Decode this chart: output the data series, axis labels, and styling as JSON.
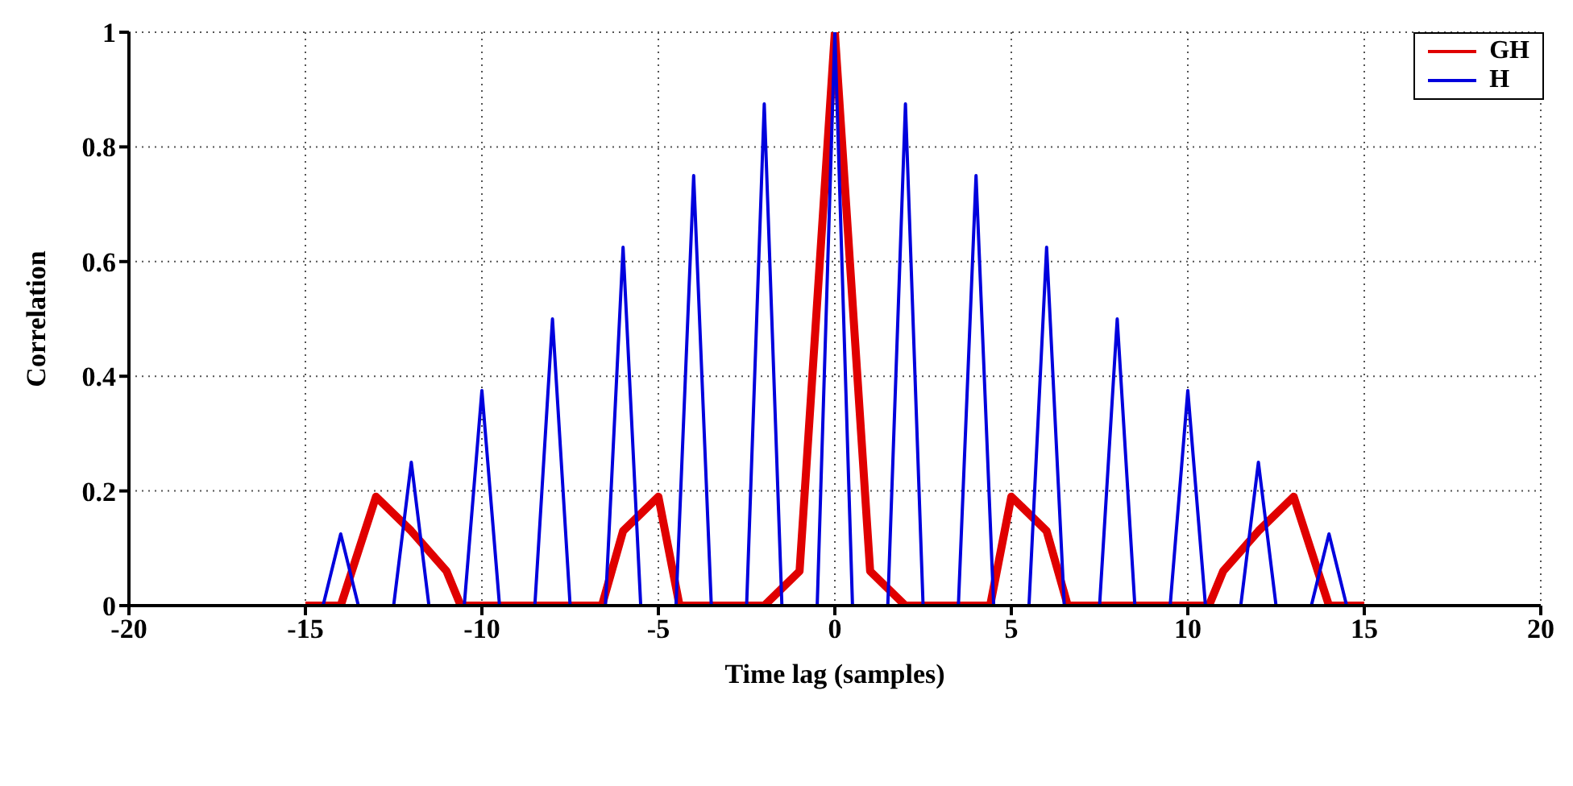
{
  "chart_data": {
    "type": "line",
    "xlabel": "Time lag (samples)",
    "ylabel": "Correlation",
    "xlim": [
      -20,
      20
    ],
    "xticks": [
      -20,
      -15,
      -10,
      -5,
      0,
      5,
      10,
      15,
      20
    ],
    "ylim": [
      0,
      1
    ],
    "yticks": [
      0,
      0.2,
      0.4,
      0.6,
      0.8,
      1
    ],
    "grid": true,
    "legend": "top right",
    "marker": "none",
    "line_style": "solid",
    "series": [
      {
        "name": "GH",
        "color": "#e00000",
        "x": [
          -15,
          -14,
          -13,
          -12,
          -11,
          -10.6,
          -6.6,
          -6,
          -5,
          -4.4,
          -2,
          -1,
          0,
          1,
          2,
          4.4,
          5,
          6,
          6.6,
          10.6,
          11,
          12,
          13,
          14,
          15
        ],
        "values": [
          0,
          0,
          0.19,
          0.13,
          0.06,
          0,
          0,
          0.13,
          0.19,
          0,
          0,
          0.06,
          1,
          0.06,
          0,
          0,
          0.19,
          0.13,
          0,
          0,
          0.06,
          0.13,
          0.19,
          0,
          0
        ]
      },
      {
        "name": "H",
        "color": "#0000dd",
        "x": [
          -15,
          -14.5,
          -14,
          -13.5,
          -13,
          -12.5,
          -12,
          -11.5,
          -11,
          -10.5,
          -10,
          -9.5,
          -9,
          -8.5,
          -8,
          -7.5,
          -7,
          -6.5,
          -6,
          -5.5,
          -5,
          -4.5,
          -4,
          -3.5,
          -3,
          -2.5,
          -2,
          -1.5,
          -1,
          -0.5,
          0,
          0.5,
          1,
          1.5,
          2,
          2.5,
          3,
          3.5,
          4,
          4.5,
          5,
          5.5,
          6,
          6.5,
          7,
          7.5,
          8,
          8.5,
          9,
          9.5,
          10,
          10.5,
          11,
          11.5,
          12,
          12.5,
          13,
          13.5,
          14,
          14.5,
          15
        ],
        "values": [
          0,
          0,
          0.125,
          0,
          0,
          0,
          0.25,
          0,
          0,
          0,
          0.375,
          0,
          0,
          0,
          0.5,
          0,
          0,
          0,
          0.625,
          0,
          0,
          0,
          0.75,
          0,
          0,
          0,
          0.875,
          0,
          0,
          0,
          1,
          0,
          0,
          0,
          0.875,
          0,
          0,
          0,
          0.75,
          0,
          0,
          0,
          0.625,
          0,
          0,
          0,
          0.5,
          0,
          0,
          0,
          0.375,
          0,
          0,
          0,
          0.25,
          0,
          0,
          0,
          0.125,
          0,
          0
        ]
      }
    ]
  }
}
